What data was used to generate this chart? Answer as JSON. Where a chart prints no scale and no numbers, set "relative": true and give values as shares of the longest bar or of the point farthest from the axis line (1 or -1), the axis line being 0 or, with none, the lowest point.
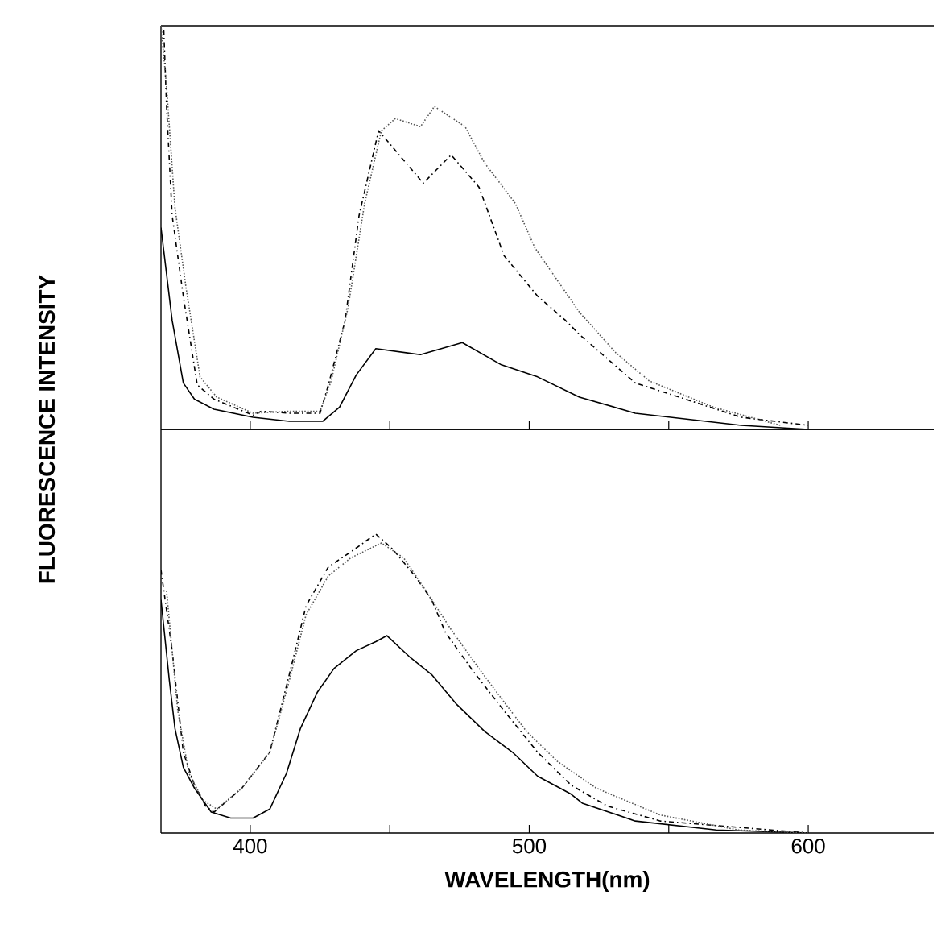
{
  "chart_data": [
    {
      "type": "line",
      "relative": true,
      "ylabel": "FLUORESCENCE INTENSITY",
      "xlim": [
        368,
        645
      ],
      "xticks": [
        {
          "value": 400,
          "label": null
        },
        {
          "value": 450,
          "label": null
        },
        {
          "value": 500,
          "label": null
        },
        {
          "value": 550,
          "label": null
        },
        {
          "value": 600,
          "label": null
        }
      ],
      "tick_labels": false,
      "marker": "none",
      "series": [
        {
          "color": "#000000",
          "line_style": "solid",
          "x": [
            368,
            372,
            376,
            380,
            387,
            401,
            414,
            426,
            432,
            438,
            445,
            461,
            476,
            490,
            503,
            518,
            538,
            576,
            600
          ],
          "values": [
            0.5,
            0.27,
            0.115,
            0.075,
            0.05,
            0.03,
            0.02,
            0.02,
            0.055,
            0.135,
            0.2,
            0.185,
            0.215,
            0.16,
            0.13,
            0.08,
            0.04,
            0.01,
            0.0
          ]
        },
        {
          "color": "#000000",
          "line_style": "dashed",
          "x": [
            369,
            370,
            372,
            376,
            381,
            387,
            401,
            404,
            414,
            425,
            428,
            434,
            439,
            446,
            462,
            472,
            482,
            491,
            503,
            513,
            518,
            538,
            576,
            600
          ],
          "values": [
            0.99,
            0.8,
            0.53,
            0.33,
            0.11,
            0.075,
            0.035,
            0.045,
            0.04,
            0.04,
            0.11,
            0.27,
            0.53,
            0.74,
            0.61,
            0.68,
            0.6,
            0.43,
            0.33,
            0.27,
            0.235,
            0.115,
            0.03,
            0.01
          ]
        },
        {
          "color": "#555555",
          "line_style": "dotted",
          "x": [
            368,
            370,
            373,
            377,
            382,
            388,
            401,
            414,
            425,
            429,
            435,
            441,
            447,
            452,
            461,
            466,
            477,
            484,
            495,
            502,
            510,
            518,
            531,
            543,
            566,
            590
          ],
          "values": [
            1.0,
            0.85,
            0.55,
            0.35,
            0.13,
            0.08,
            0.04,
            0.045,
            0.045,
            0.12,
            0.3,
            0.56,
            0.74,
            0.77,
            0.75,
            0.8,
            0.75,
            0.66,
            0.56,
            0.45,
            0.37,
            0.29,
            0.19,
            0.12,
            0.055,
            0.01
          ]
        }
      ]
    },
    {
      "type": "line",
      "relative": true,
      "xlabel": "WAVELENGTH(nm)",
      "xlim": [
        368,
        645
      ],
      "xticks": [
        400,
        {
          "value": 450,
          "label": null
        },
        500,
        {
          "value": 550,
          "label": null
        },
        600
      ],
      "tick_labels": "x",
      "marker": "none",
      "series": [
        {
          "color": "#000000",
          "line_style": "solid",
          "x": [
            368,
            371,
            373,
            376,
            380,
            386,
            393,
            401,
            407,
            413,
            418,
            424,
            430,
            438,
            445,
            449,
            457,
            465,
            474,
            484,
            494,
            503,
            515,
            519,
            538,
            567,
            600
          ],
          "values": [
            0.78,
            0.51,
            0.35,
            0.22,
            0.15,
            0.07,
            0.05,
            0.05,
            0.08,
            0.2,
            0.35,
            0.47,
            0.55,
            0.61,
            0.64,
            0.66,
            0.59,
            0.53,
            0.43,
            0.34,
            0.27,
            0.19,
            0.13,
            0.1,
            0.04,
            0.01,
            0.0
          ]
        },
        {
          "color": "#000000",
          "line_style": "dashed",
          "x": [
            368,
            372,
            376,
            380,
            384,
            387,
            397,
            407,
            414,
            420,
            428,
            436,
            445,
            451,
            459,
            465,
            470,
            480,
            490,
            503,
            515,
            528,
            547,
            600
          ],
          "values": [
            0.88,
            0.61,
            0.27,
            0.16,
            0.09,
            0.07,
            0.15,
            0.27,
            0.53,
            0.76,
            0.89,
            0.94,
            1.0,
            0.95,
            0.86,
            0.78,
            0.67,
            0.54,
            0.42,
            0.27,
            0.16,
            0.09,
            0.04,
            0.0
          ]
        },
        {
          "color": "#555555",
          "line_style": "dotted",
          "x": [
            370,
            374,
            378,
            383,
            388,
            397,
            407,
            414,
            420,
            428,
            436,
            447,
            455,
            463,
            472,
            482,
            490,
            499,
            510,
            524,
            547,
            575,
            600
          ],
          "values": [
            0.81,
            0.41,
            0.2,
            0.11,
            0.08,
            0.15,
            0.27,
            0.51,
            0.73,
            0.86,
            0.92,
            0.97,
            0.92,
            0.81,
            0.68,
            0.55,
            0.45,
            0.34,
            0.24,
            0.15,
            0.06,
            0.01,
            0.0
          ]
        }
      ]
    }
  ]
}
